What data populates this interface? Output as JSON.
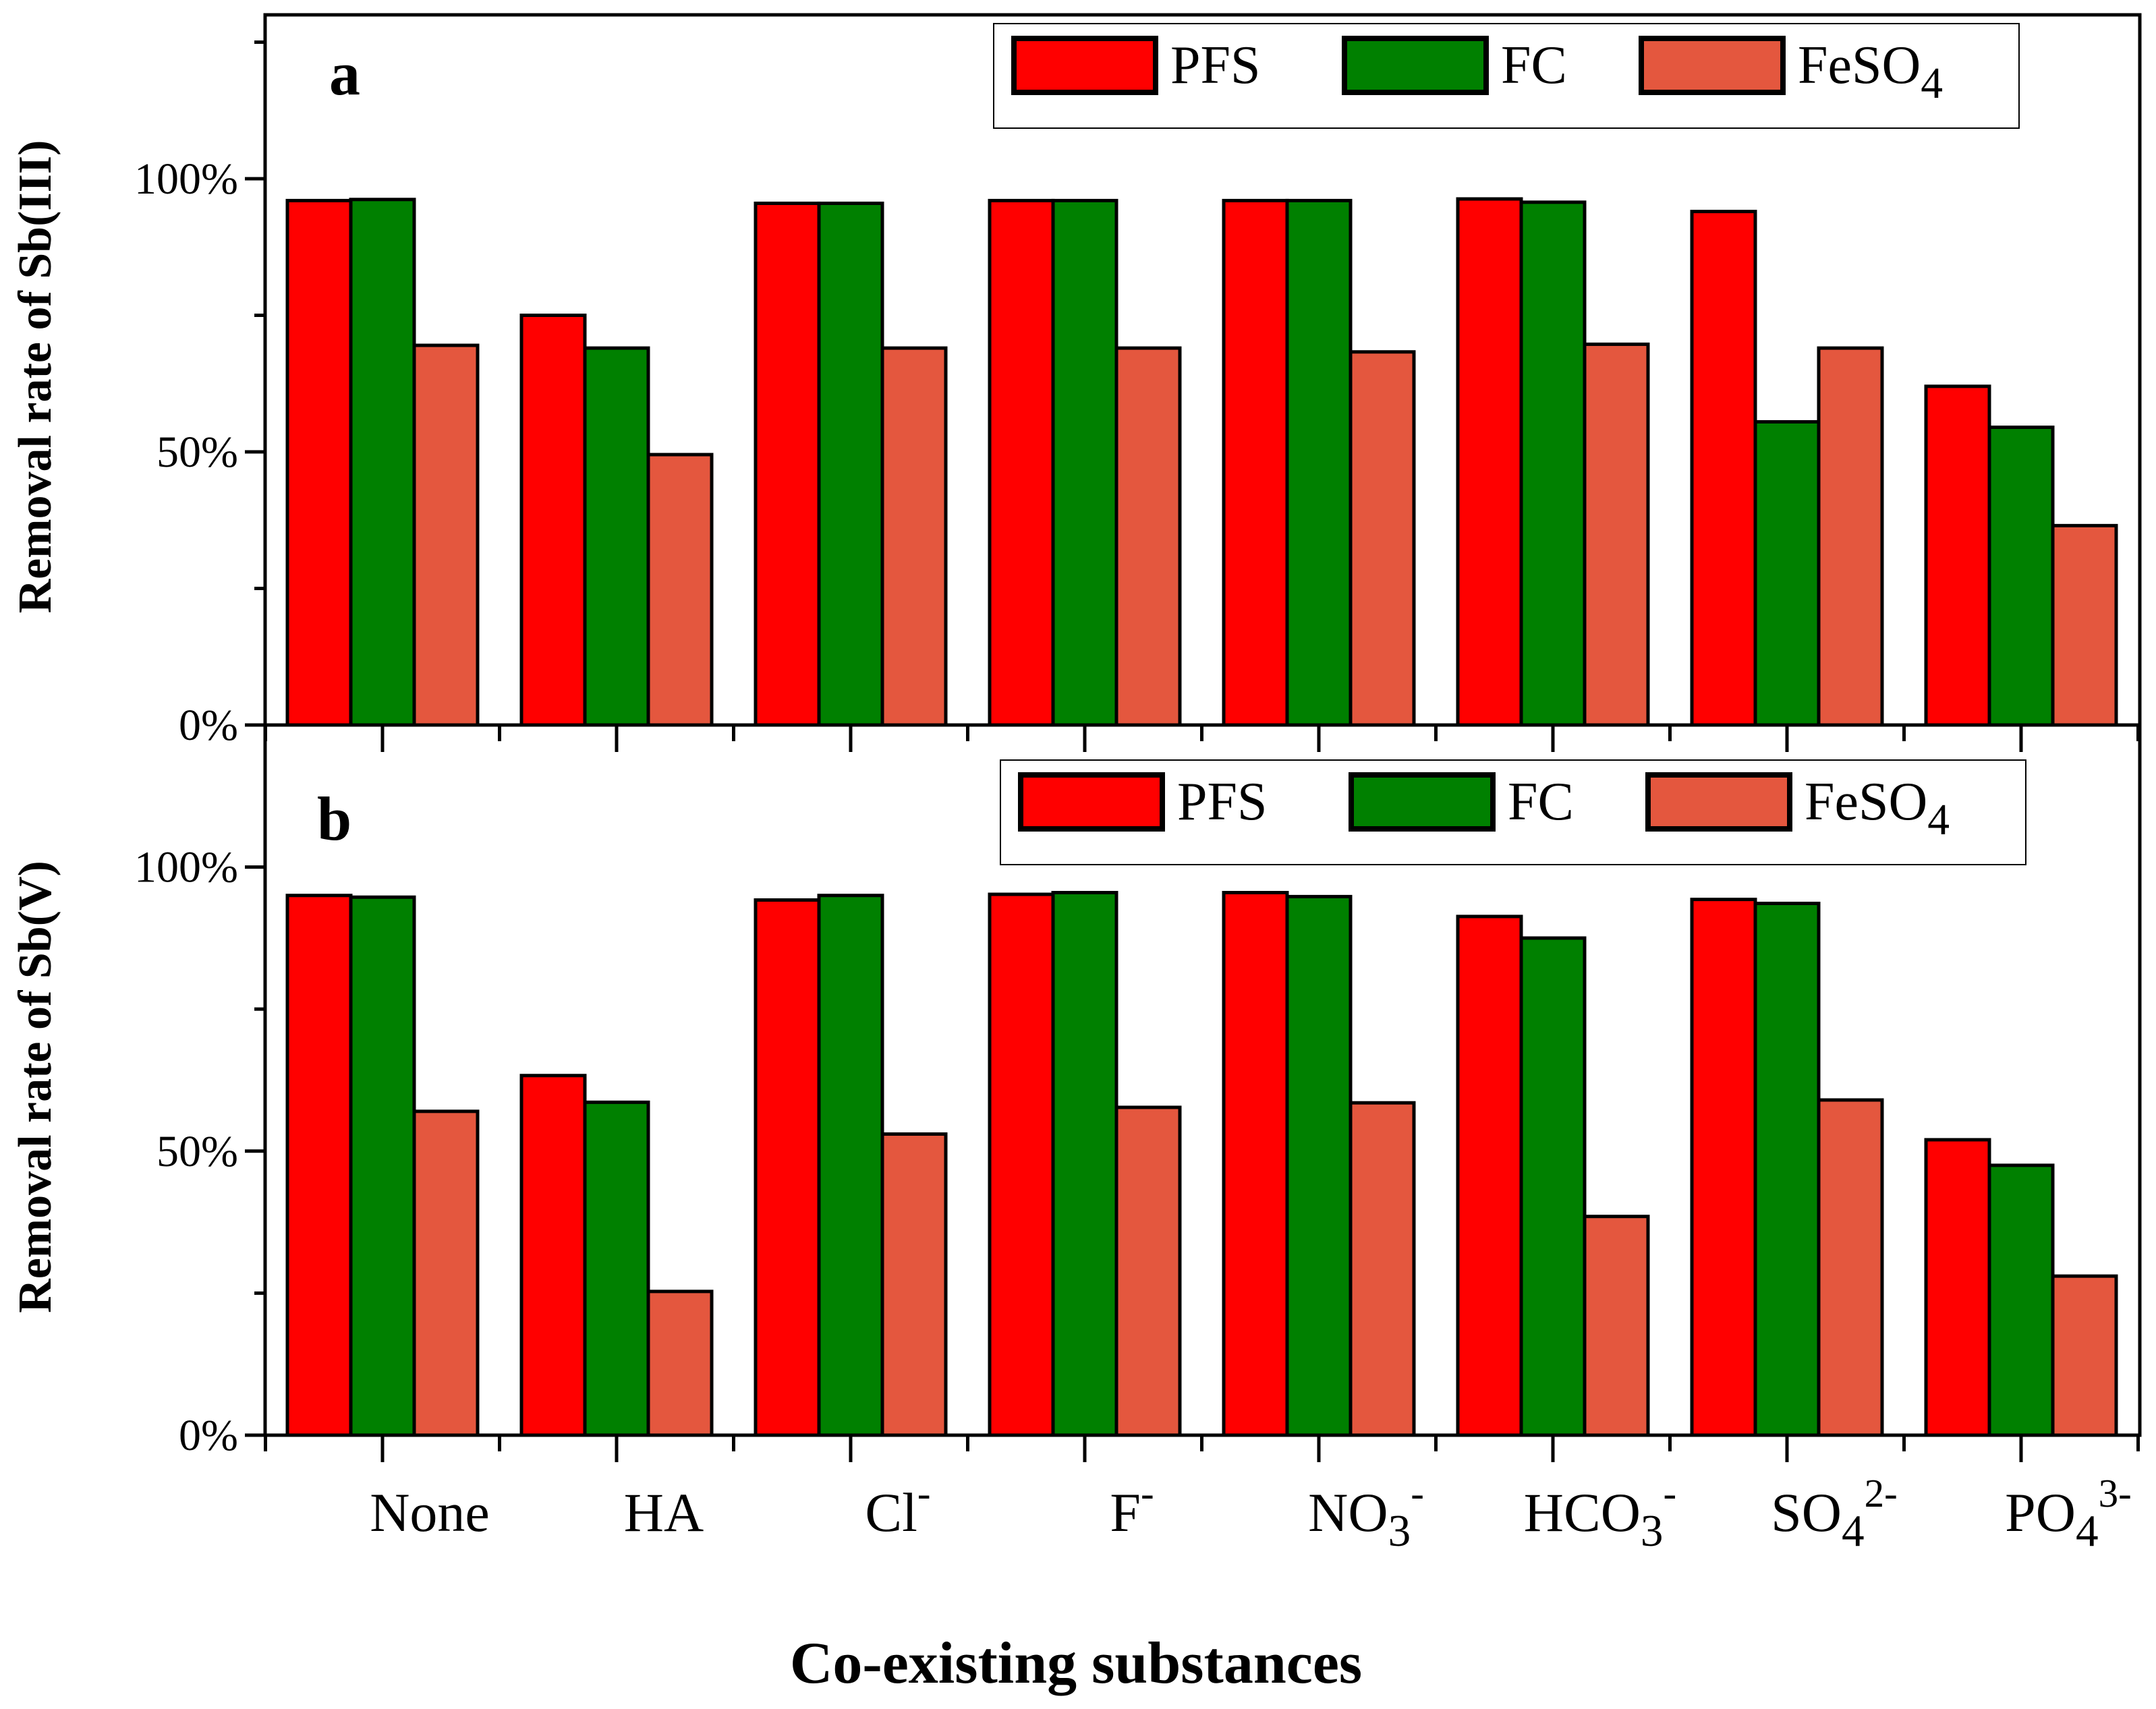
{
  "chart_data": [
    {
      "type": "bar",
      "panel_label": "a",
      "ylabel": "Removal rate of Sb(III)",
      "xlabel": "",
      "ylim": [
        0,
        130
      ],
      "yticks": [
        0,
        50,
        100
      ],
      "ytick_labels": [
        "0%",
        "50%",
        "100%"
      ],
      "categories": [
        {
          "base": "None",
          "sub": "",
          "sup": ""
        },
        {
          "base": "HA",
          "sub": "",
          "sup": ""
        },
        {
          "base": "Cl",
          "sub": "",
          "sup": "-"
        },
        {
          "base": "F",
          "sub": "",
          "sup": "-"
        },
        {
          "base": "NO",
          "sub": "3",
          "sup": "-"
        },
        {
          "base": "HCO",
          "sub": "3",
          "sup": "-"
        },
        {
          "base": "SO",
          "sub": "4",
          "sup": "2-"
        },
        {
          "base": "PO",
          "sub": "4",
          "sup": "3-"
        }
      ],
      "series": [
        {
          "name": "PFS",
          "name_base": "PFS",
          "name_sub": "",
          "color": "#FF0000",
          "values": [
            96,
            75,
            95.5,
            96,
            96,
            96.3,
            94,
            62
          ]
        },
        {
          "name": "FC",
          "name_base": "FC",
          "name_sub": "",
          "color": "#008000",
          "values": [
            96.2,
            69,
            95.5,
            96,
            96,
            95.7,
            55.5,
            54.5
          ]
        },
        {
          "name": "FeSO4",
          "name_base": "FeSO",
          "name_sub": "4",
          "color": "#E4573E",
          "values": [
            69.5,
            49.5,
            69,
            69,
            68.3,
            69.7,
            69,
            36.5
          ]
        }
      ],
      "legend_position": "top-right",
      "grid": false
    },
    {
      "type": "bar",
      "panel_label": "b",
      "ylabel": "Removal rate of Sb(V)",
      "xlabel": "Co-existing substances",
      "ylim": [
        0,
        125
      ],
      "yticks": [
        0,
        50,
        100
      ],
      "ytick_labels": [
        "0%",
        "50%",
        "100%"
      ],
      "categories": [
        {
          "base": "None",
          "sub": "",
          "sup": ""
        },
        {
          "base": "HA",
          "sub": "",
          "sup": ""
        },
        {
          "base": "Cl",
          "sub": "",
          "sup": "-"
        },
        {
          "base": "F",
          "sub": "",
          "sup": "-"
        },
        {
          "base": "NO",
          "sub": "3",
          "sup": "-"
        },
        {
          "base": "HCO",
          "sub": "3",
          "sup": "-"
        },
        {
          "base": "SO",
          "sub": "4",
          "sup": "2-"
        },
        {
          "base": "PO",
          "sub": "4",
          "sup": "3-"
        }
      ],
      "series": [
        {
          "name": "PFS",
          "name_base": "PFS",
          "name_sub": "",
          "color": "#FF0000",
          "values": [
            95,
            63.3,
            94.2,
            95.2,
            95.5,
            91.3,
            94.3,
            52
          ]
        },
        {
          "name": "FC",
          "name_base": "FC",
          "name_sub": "",
          "color": "#008000",
          "values": [
            94.7,
            58.6,
            95,
            95.5,
            94.8,
            87.5,
            93.6,
            47.5
          ]
        },
        {
          "name": "FeSO4",
          "name_base": "FeSO",
          "name_sub": "4",
          "color": "#E4573E",
          "values": [
            57,
            25.3,
            53,
            57.7,
            58.5,
            38.5,
            59,
            28
          ]
        }
      ],
      "legend_position": "top-right",
      "grid": false
    }
  ]
}
